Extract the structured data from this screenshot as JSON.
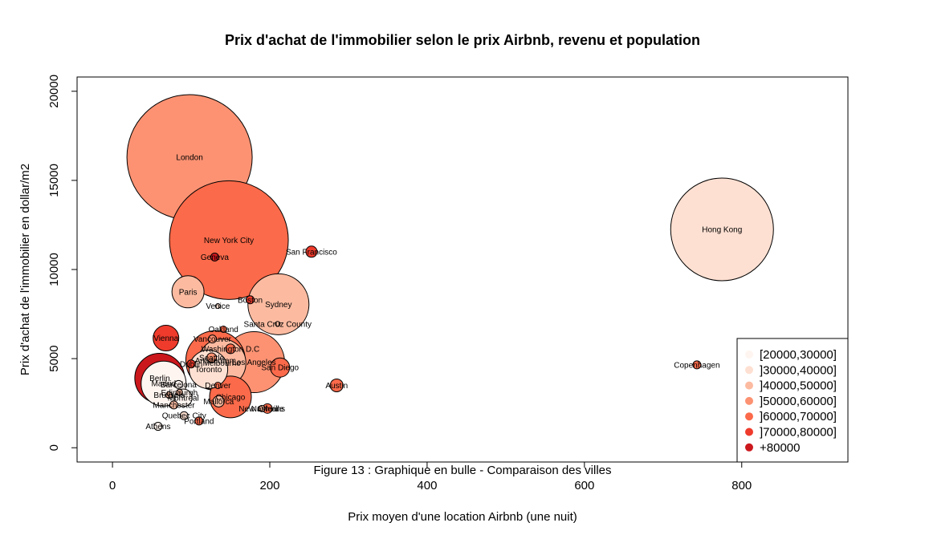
{
  "chart_data": {
    "type": "scatter",
    "title": "Prix d'achat de l'immobilier selon le prix Airbnb, revenu et population",
    "xlabel": "Prix moyen d'une location Airbnb (une nuit)",
    "ylabel": "Prix d'achat de l'immobilier en dollar/m2",
    "caption": "Figure 13 : Graphique en bulle - Comparaison des villes",
    "xlim": [
      -45,
      935
    ],
    "ylim": [
      -800,
      20800
    ],
    "xticks": [
      0,
      200,
      400,
      600,
      800
    ],
    "yticks": [
      0,
      5000,
      10000,
      15000,
      20000
    ],
    "grid": false,
    "legend_position": "bottom-right",
    "legend": [
      {
        "label": "[20000,30000]",
        "color": "#FFF5F0"
      },
      {
        "label": "]30000,40000]",
        "color": "#FEE0D2"
      },
      {
        "label": "]40000,50000]",
        "color": "#FCBBA1"
      },
      {
        "label": "]50000,60000]",
        "color": "#FC9272"
      },
      {
        "label": "]60000,70000]",
        "color": "#FB6A4A"
      },
      {
        "label": "]70000,80000]",
        "color": "#EF3B2C"
      },
      {
        "label": "+80000",
        "color": "#CB181D"
      }
    ],
    "points": [
      {
        "city": "London",
        "x": 98,
        "y": 16300,
        "size": 78,
        "color": "#FC9272"
      },
      {
        "city": "New York City",
        "x": 148,
        "y": 11650,
        "size": 74,
        "color": "#FB6A4A"
      },
      {
        "city": "Geneva",
        "x": 130,
        "y": 10700,
        "size": 5,
        "color": "#CB181D"
      },
      {
        "city": "Hong Kong",
        "x": 775,
        "y": 12250,
        "size": 64,
        "color": "#FEE0D2"
      },
      {
        "city": "San Francisco",
        "x": 253,
        "y": 11000,
        "size": 7,
        "color": "#EF3B2C"
      },
      {
        "city": "Sydney",
        "x": 211,
        "y": 8050,
        "size": 38,
        "color": "#FCBBA1"
      },
      {
        "city": "Paris",
        "x": 96,
        "y": 8750,
        "size": 20,
        "color": "#FCBBA1"
      },
      {
        "city": "Boston",
        "x": 175,
        "y": 8300,
        "size": 5,
        "color": "#EF3B2C"
      },
      {
        "city": "Venice",
        "x": 134,
        "y": 7950,
        "size": 3,
        "color": "#FEE0D2"
      },
      {
        "city": "Santa Cruz County",
        "x": 210,
        "y": 6950,
        "size": 3,
        "color": "#FCBBA1"
      },
      {
        "city": "Oakland",
        "x": 141,
        "y": 6650,
        "size": 4,
        "color": "#FB6A4A"
      },
      {
        "city": "Vienna",
        "x": 68,
        "y": 6150,
        "size": 16,
        "color": "#EF3B2C"
      },
      {
        "city": "Vancouver",
        "x": 127,
        "y": 6100,
        "size": 5,
        "color": "#FC9272"
      },
      {
        "city": "Washington D.C",
        "x": 150,
        "y": 5550,
        "size": 6,
        "color": "#FB6A4A"
      },
      {
        "city": "Los Angeles",
        "x": 180,
        "y": 4800,
        "size": 38,
        "color": "#FC9272"
      },
      {
        "city": "Amsterdam",
        "x": 131,
        "y": 4900,
        "size": 37,
        "color": "#FB6A4A"
      },
      {
        "city": "Seattle",
        "x": 126,
        "y": 5050,
        "size": 6,
        "color": "#FC9272"
      },
      {
        "city": "Melbourne",
        "x": 139,
        "y": 4750,
        "size": 30,
        "color": "#FCBBA1"
      },
      {
        "city": "Toronto",
        "x": 122,
        "y": 4400,
        "size": 24,
        "color": "#FEE0D2"
      },
      {
        "city": "Dublin",
        "x": 100,
        "y": 4700,
        "size": 5,
        "color": "#EF3B2C"
      },
      {
        "city": "San Diego",
        "x": 213,
        "y": 4500,
        "size": 12,
        "color": "#FB6A4A"
      },
      {
        "city": "Copenhagen",
        "x": 743,
        "y": 4650,
        "size": 5,
        "color": "#FB6A4A"
      },
      {
        "city": "Austin",
        "x": 285,
        "y": 3500,
        "size": 8,
        "color": "#FB6A4A"
      },
      {
        "city": "Berlin",
        "x": 60,
        "y": 3900,
        "size": 31,
        "color": "#CB181D"
      },
      {
        "city": "Madrid",
        "x": 65,
        "y": 3600,
        "size": 28,
        "color": "#FFF5F0"
      },
      {
        "city": "Barcelona",
        "x": 84,
        "y": 3550,
        "size": 5,
        "color": "#FFF5F0"
      },
      {
        "city": "Edinburgh",
        "x": 85,
        "y": 3100,
        "size": 4,
        "color": "#FCBBA1"
      },
      {
        "city": "Brussels",
        "x": 72,
        "y": 2950,
        "size": 4,
        "color": "#FCBBA1"
      },
      {
        "city": "Montreal",
        "x": 90,
        "y": 2800,
        "size": 11,
        "color": "#FFF5F0"
      },
      {
        "city": "Denver",
        "x": 134,
        "y": 3500,
        "size": 4,
        "color": "#FB6A4A"
      },
      {
        "city": "Chicago",
        "x": 150,
        "y": 2850,
        "size": 26,
        "color": "#FB6A4A"
      },
      {
        "city": "Mallorca",
        "x": 135,
        "y": 2600,
        "size": 7,
        "color": "#FCBBA1"
      },
      {
        "city": "Manchester",
        "x": 78,
        "y": 2400,
        "size": 5,
        "color": "#FCBBA1"
      },
      {
        "city": "New Orleans",
        "x": 190,
        "y": 2200,
        "size": 4,
        "color": "#FCBBA1"
      },
      {
        "city": "Nashville",
        "x": 197,
        "y": 2200,
        "size": 6,
        "color": "#FB6A4A"
      },
      {
        "city": "Quebec City",
        "x": 91,
        "y": 1800,
        "size": 5,
        "color": "#FEE0D2"
      },
      {
        "city": "Portland",
        "x": 110,
        "y": 1500,
        "size": 5,
        "color": "#FB6A4A"
      },
      {
        "city": "Athens",
        "x": 58,
        "y": 1200,
        "size": 5,
        "color": "#FFF5F0"
      }
    ]
  }
}
